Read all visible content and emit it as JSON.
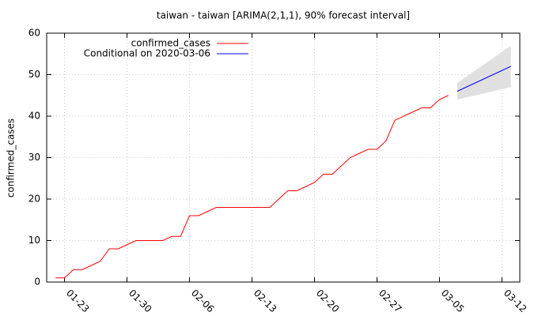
{
  "chart_data": {
    "type": "line",
    "title": "taiwan - taiwan [ARIMA(2,1,1), 90% forecast interval]",
    "y_label": "confirmed_cases",
    "xlim": [
      "01-21",
      "03-14"
    ],
    "xticks": [
      "01-23",
      "01-30",
      "02-06",
      "02-13",
      "02-20",
      "02-27",
      "03-05",
      "03-12"
    ],
    "ylim": [
      0,
      60
    ],
    "yticks": [
      0,
      10,
      20,
      30,
      40,
      50,
      60
    ],
    "grid": true,
    "legend": "top-left",
    "series": [
      {
        "name": "confirmed_cases",
        "color": "#ff0000",
        "x": [
          "01-22",
          "01-23",
          "01-24",
          "01-25",
          "01-26",
          "01-27",
          "01-28",
          "01-29",
          "01-30",
          "01-31",
          "02-01",
          "02-02",
          "02-03",
          "02-04",
          "02-05",
          "02-06",
          "02-07",
          "02-08",
          "02-09",
          "02-10",
          "02-11",
          "02-12",
          "02-13",
          "02-14",
          "02-15",
          "02-16",
          "02-17",
          "02-18",
          "02-19",
          "02-20",
          "02-21",
          "02-22",
          "02-23",
          "02-24",
          "02-25",
          "02-26",
          "02-27",
          "02-28",
          "02-29",
          "03-01",
          "03-02",
          "03-03",
          "03-04",
          "03-05",
          "03-06"
        ],
        "values": [
          1,
          1,
          3,
          3,
          4,
          5,
          8,
          8,
          9,
          10,
          10,
          10,
          10,
          11,
          11,
          16,
          16,
          17,
          18,
          18,
          18,
          18,
          18,
          18,
          18,
          20,
          22,
          22,
          23,
          24,
          26,
          26,
          28,
          30,
          31,
          32,
          32,
          34,
          39,
          40,
          41,
          42,
          42,
          44,
          45
        ]
      },
      {
        "name": "Conditional on 2020-03-06",
        "color": "#0000ff",
        "x": [
          "03-07",
          "03-08",
          "03-09",
          "03-10",
          "03-11",
          "03-12",
          "03-13"
        ],
        "values": [
          46,
          47,
          48,
          49,
          50,
          51,
          52
        ],
        "lower": [
          44,
          44.5,
          45,
          45.5,
          46,
          46.5,
          47
        ],
        "upper": [
          48,
          49.5,
          51,
          52.5,
          54,
          55.5,
          57
        ],
        "band_color": "#e0e0e0"
      }
    ]
  }
}
